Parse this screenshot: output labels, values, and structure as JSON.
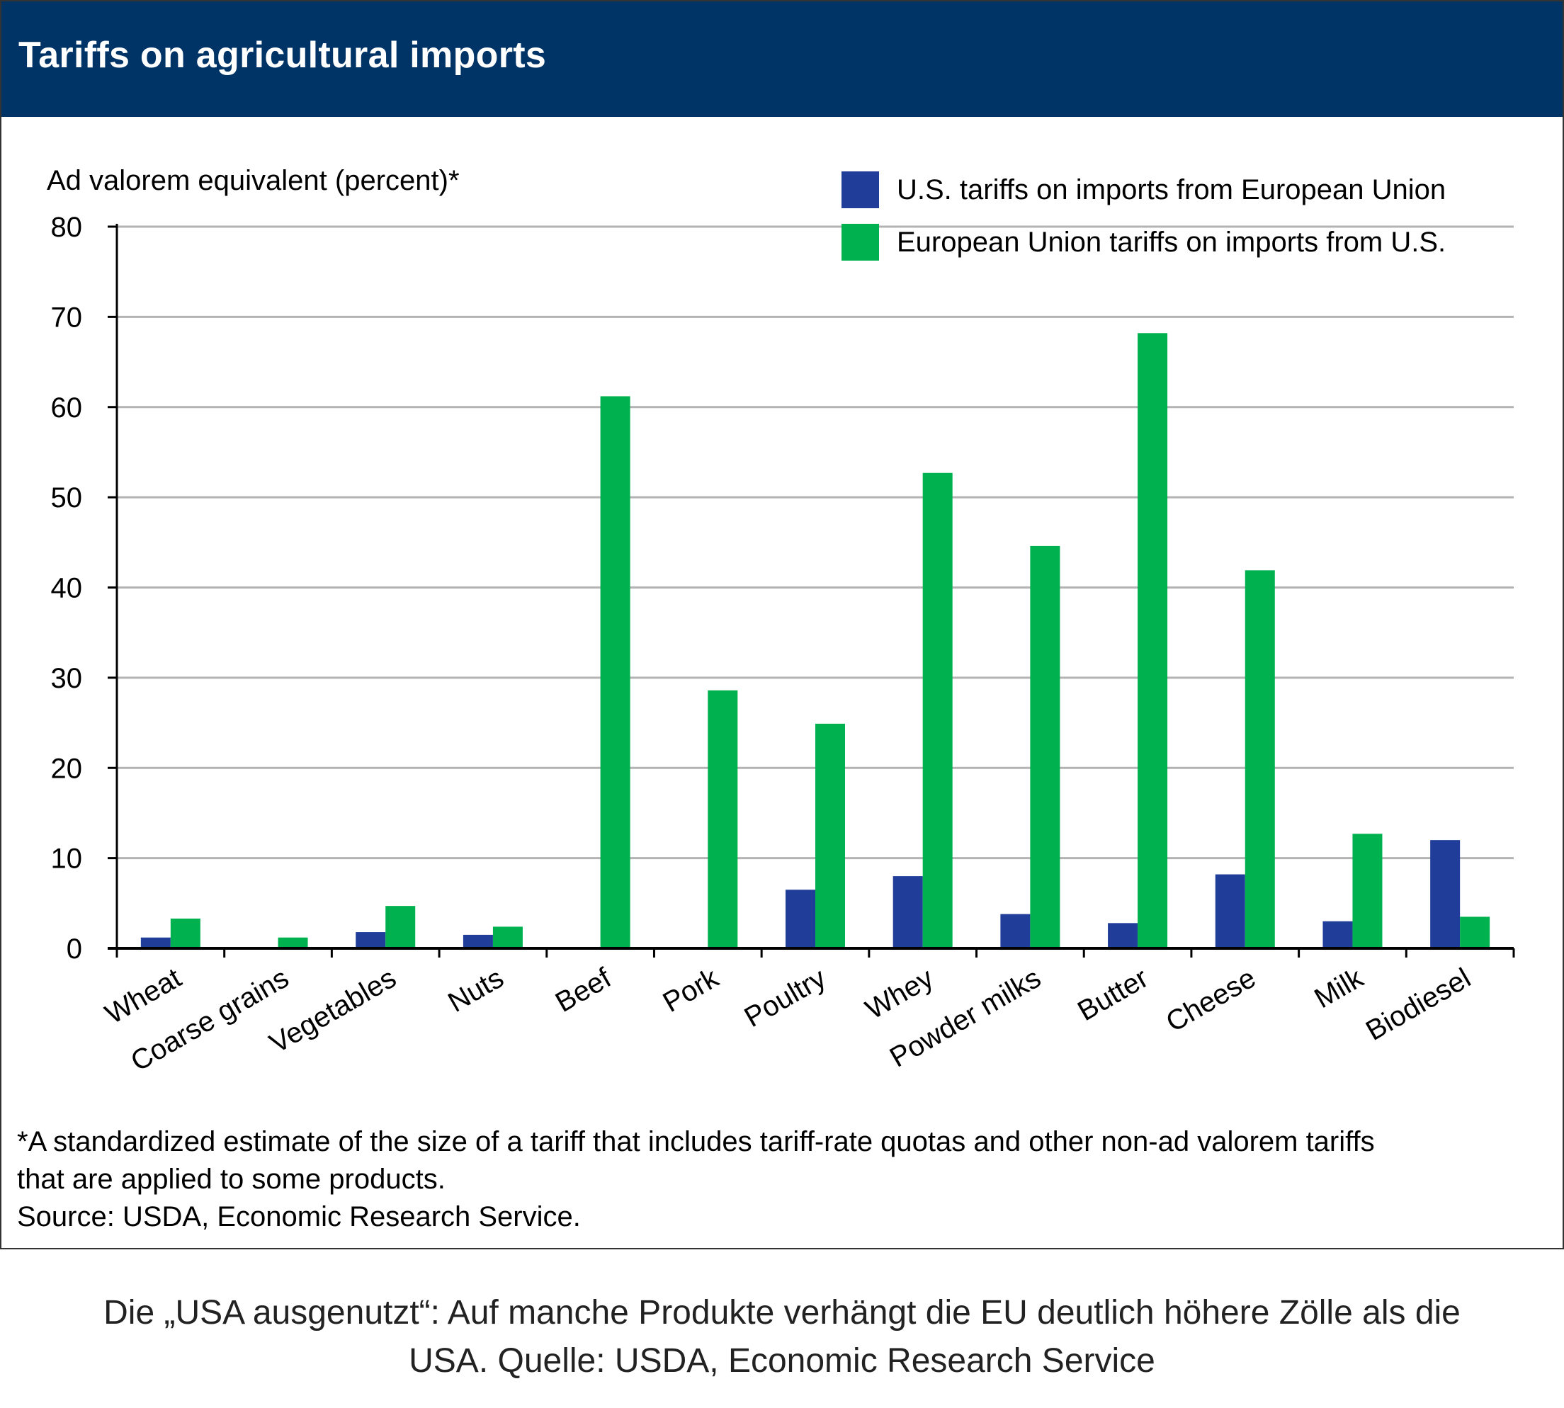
{
  "title": "Tariffs on agricultural imports",
  "chart_data": {
    "type": "bar",
    "ylabel": "Ad valorem equivalent (percent)*",
    "ylim": [
      0,
      80
    ],
    "yticks": [
      "0",
      "10",
      "20",
      "30",
      "40",
      "50",
      "60",
      "70",
      "80"
    ],
    "grid": true,
    "legend_position": "top-right",
    "categories": [
      "Wheat",
      "Coarse grains",
      "Vegetables",
      "Nuts",
      "Beef",
      "Pork",
      "Poultry",
      "Whey",
      "Powder milks",
      "Butter",
      "Cheese",
      "Milk",
      "Biodiesel"
    ],
    "series": [
      {
        "name": "U.S. tariffs on imports from European Union",
        "color": "#1f3d99",
        "values": [
          1.2,
          0,
          1.8,
          1.5,
          0,
          0,
          6.5,
          8.0,
          3.8,
          2.8,
          8.2,
          3.0,
          12.0
        ]
      },
      {
        "name": "European Union tariffs on imports from U.S.",
        "color": "#00b14f",
        "values": [
          3.3,
          1.2,
          4.7,
          2.4,
          61.2,
          28.6,
          24.9,
          52.7,
          44.6,
          68.2,
          41.9,
          12.7,
          3.5
        ]
      }
    ]
  },
  "footnote_line1": "*A standardized estimate of the size of a tariff that includes tariff-rate quotas and other non-ad valorem tariffs",
  "footnote_line2": "that are applied to some products.",
  "source": " Source: USDA, Economic Research Service.",
  "caption_line1": "Die „USA ausgenutzt“: Auf manche Produkte verhängt die EU deutlich höhere Zölle als die",
  "caption_line2": "USA. Quelle: USDA, Economic Research Service"
}
